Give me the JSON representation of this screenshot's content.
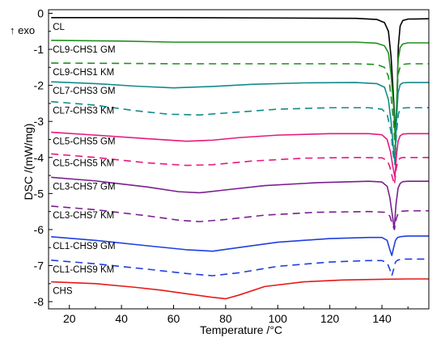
{
  "chart_data": {
    "type": "line",
    "xlabel": "Temperature /°C",
    "ylabel": "DSC /(mW/mg)",
    "exo_label": "↑ exo",
    "xlim": [
      12,
      158
    ],
    "ylim": [
      -8.2,
      0.1
    ],
    "xticks": [
      20,
      40,
      60,
      80,
      100,
      120,
      140
    ],
    "yticks": [
      0,
      -1,
      -2,
      -3,
      -4,
      -5,
      -6,
      -7,
      -8
    ],
    "grid": false,
    "series": [
      {
        "name": "CL",
        "color": "#000000",
        "dash": false,
        "x": [
          13,
          60,
          100,
          130,
          138,
          141,
          142.5,
          143.5,
          144.5,
          145.3,
          145.8,
          146.3,
          147,
          148,
          150,
          158
        ],
        "y": [
          -0.12,
          -0.12,
          -0.13,
          -0.14,
          -0.17,
          -0.26,
          -0.5,
          -1.2,
          -2.4,
          -3.45,
          -2.3,
          -0.9,
          -0.35,
          -0.2,
          -0.16,
          -0.15
        ]
      },
      {
        "name": "CL9-CHS1 GM",
        "color": "#1f8f1f",
        "dash": false,
        "x": [
          13,
          40,
          60,
          100,
          130,
          138,
          141,
          142.5,
          143.5,
          144.5,
          145.2,
          145.7,
          146.2,
          147,
          148,
          150,
          158
        ],
        "y": [
          -0.75,
          -0.77,
          -0.8,
          -0.8,
          -0.8,
          -0.83,
          -0.9,
          -1.1,
          -1.7,
          -2.6,
          -3.6,
          -2.5,
          -1.3,
          -0.95,
          -0.85,
          -0.82,
          -0.82
        ]
      },
      {
        "name": "CL9-CHS1 KM",
        "color": "#1f8f1f",
        "dash": true,
        "x": [
          13,
          40,
          60,
          100,
          130,
          138,
          141,
          142.5,
          143.5,
          144.5,
          145.1,
          145.6,
          146.2,
          147,
          148,
          150,
          158
        ],
        "y": [
          -1.38,
          -1.39,
          -1.4,
          -1.4,
          -1.4,
          -1.42,
          -1.5,
          -1.75,
          -2.3,
          -3.05,
          -3.85,
          -2.6,
          -1.7,
          -1.48,
          -1.42,
          -1.4,
          -1.4
        ]
      },
      {
        "name": "CL7-CHS3 GM",
        "color": "#138a8a",
        "dash": false,
        "x": [
          13,
          30,
          45,
          60,
          75,
          90,
          110,
          130,
          138,
          141,
          142.5,
          143.5,
          144.5,
          145,
          145.5,
          146.2,
          147,
          148,
          150,
          158
        ],
        "y": [
          -1.9,
          -1.95,
          -2.02,
          -2.07,
          -2.03,
          -1.97,
          -1.93,
          -1.92,
          -1.95,
          -2.05,
          -2.4,
          -3.0,
          -3.8,
          -4.15,
          -3.1,
          -2.2,
          -1.98,
          -1.93,
          -1.92,
          -1.92
        ]
      },
      {
        "name": "CL7-CHS3 KM",
        "color": "#138a8a",
        "dash": true,
        "x": [
          13,
          30,
          45,
          58,
          70,
          85,
          100,
          120,
          135,
          140,
          142,
          143.5,
          144.3,
          145,
          145.6,
          146.3,
          147,
          148,
          150,
          158
        ],
        "y": [
          -2.45,
          -2.55,
          -2.7,
          -2.8,
          -2.82,
          -2.74,
          -2.66,
          -2.62,
          -2.62,
          -2.66,
          -2.8,
          -3.3,
          -3.9,
          -4.2,
          -3.3,
          -2.8,
          -2.66,
          -2.63,
          -2.62,
          -2.62
        ]
      },
      {
        "name": "CL5-CHS5 GM",
        "color": "#e6197f",
        "dash": false,
        "x": [
          13,
          30,
          50,
          65,
          75,
          85,
          100,
          120,
          135,
          140,
          142,
          143.3,
          144.3,
          145,
          145.5,
          146.2,
          147,
          148,
          150,
          158
        ],
        "y": [
          -3.3,
          -3.38,
          -3.48,
          -3.55,
          -3.52,
          -3.45,
          -3.38,
          -3.34,
          -3.34,
          -3.37,
          -3.5,
          -3.85,
          -4.3,
          -4.55,
          -4.0,
          -3.55,
          -3.4,
          -3.35,
          -3.34,
          -3.34
        ]
      },
      {
        "name": "CL5-CHS5 KM",
        "color": "#e6197f",
        "dash": true,
        "x": [
          13,
          30,
          50,
          65,
          75,
          90,
          110,
          130,
          140,
          142,
          143,
          144,
          144.8,
          145.5,
          146.2,
          147,
          148,
          150,
          158
        ],
        "y": [
          -3.9,
          -4.0,
          -4.15,
          -4.22,
          -4.2,
          -4.1,
          -4.02,
          -4.0,
          -4.01,
          -4.08,
          -4.25,
          -4.55,
          -4.75,
          -4.3,
          -4.08,
          -4.02,
          -4.0,
          -4.0,
          -4.0
        ]
      },
      {
        "name": "CL3-CHS7 GM",
        "color": "#7a1f8f",
        "dash": false,
        "x": [
          13,
          30,
          50,
          62,
          70,
          80,
          95,
          115,
          135,
          140,
          142,
          143,
          144,
          144.7,
          145.4,
          146.2,
          147,
          148,
          150,
          158
        ],
        "y": [
          -4.55,
          -4.65,
          -4.82,
          -4.95,
          -4.98,
          -4.9,
          -4.78,
          -4.7,
          -4.66,
          -4.68,
          -4.8,
          -5.1,
          -5.6,
          -5.98,
          -5.3,
          -4.85,
          -4.72,
          -4.67,
          -4.66,
          -4.66
        ]
      },
      {
        "name": "CL3-CHS7 KM",
        "color": "#7a1f8f",
        "dash": true,
        "x": [
          13,
          30,
          50,
          62,
          70,
          80,
          95,
          115,
          135,
          141,
          143,
          144,
          144.8,
          145.5,
          146.2,
          147,
          148,
          150,
          158
        ],
        "y": [
          -5.35,
          -5.45,
          -5.62,
          -5.74,
          -5.78,
          -5.72,
          -5.6,
          -5.52,
          -5.5,
          -5.52,
          -5.62,
          -5.85,
          -6.0,
          -5.7,
          -5.55,
          -5.5,
          -5.49,
          -5.48,
          -5.48
        ]
      },
      {
        "name": "CL1-CHS9 GM",
        "color": "#1f3fe0",
        "dash": false,
        "x": [
          13,
          30,
          50,
          65,
          75,
          85,
          100,
          120,
          135,
          140,
          142,
          143,
          143.8,
          144.5,
          145.2,
          146,
          147,
          148,
          150,
          158
        ],
        "y": [
          -6.2,
          -6.3,
          -6.45,
          -6.56,
          -6.6,
          -6.5,
          -6.35,
          -6.25,
          -6.22,
          -6.22,
          -6.3,
          -6.55,
          -6.72,
          -6.5,
          -6.3,
          -6.22,
          -6.2,
          -6.19,
          -6.18,
          -6.18
        ]
      },
      {
        "name": "CL1-CHS9 KM",
        "color": "#1f3fe0",
        "dash": true,
        "x": [
          13,
          30,
          50,
          65,
          75,
          85,
          100,
          120,
          135,
          140,
          142,
          143,
          143.8,
          144.5,
          145.2,
          146,
          147,
          148,
          150,
          158
        ],
        "y": [
          -6.85,
          -6.95,
          -7.1,
          -7.22,
          -7.28,
          -7.2,
          -7.02,
          -6.9,
          -6.86,
          -6.86,
          -6.92,
          -7.1,
          -7.28,
          -7.1,
          -6.9,
          -6.85,
          -6.83,
          -6.82,
          -6.82,
          -6.82
        ]
      },
      {
        "name": "CHS",
        "color": "#e61919",
        "dash": false,
        "x": [
          13,
          30,
          45,
          55,
          65,
          75,
          80,
          85,
          95,
          110,
          125,
          140,
          150,
          158
        ],
        "y": [
          -7.45,
          -7.5,
          -7.6,
          -7.68,
          -7.78,
          -7.88,
          -7.92,
          -7.82,
          -7.58,
          -7.45,
          -7.4,
          -7.38,
          -7.37,
          -7.37
        ]
      }
    ]
  }
}
